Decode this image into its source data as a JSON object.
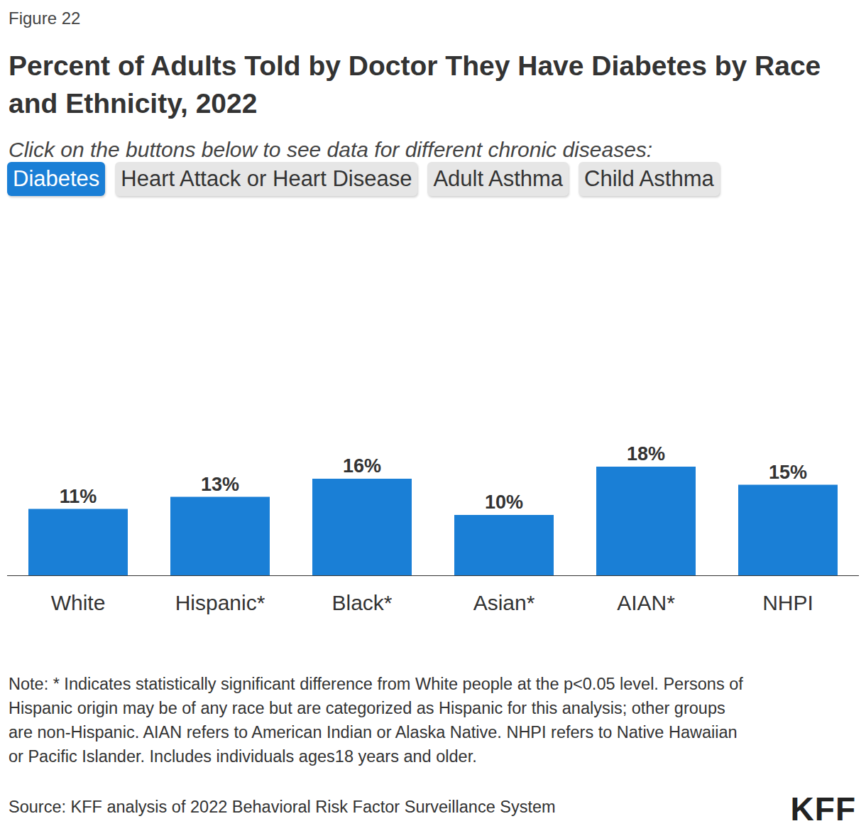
{
  "header": {
    "figure_label": "Figure 22",
    "subtitle": "Click on the buttons below to see data for different chronic diseases:",
    "buttons": [
      "Diabetes",
      "Heart Attack or Heart Disease",
      "Adult Asthma",
      "Child Asthma"
    ],
    "active_button": "Diabetes"
  },
  "chart_data": {
    "type": "bar",
    "title": "Percent of Adults Told by Doctor They Have Diabetes by Race and Ethnicity, 2022",
    "categories": [
      "White",
      "Hispanic*",
      "Black*",
      "Asian*",
      "AIAN*",
      "NHPI"
    ],
    "values": [
      11,
      13,
      16,
      10,
      18,
      15
    ],
    "value_labels": [
      "11%",
      "13%",
      "16%",
      "10%",
      "18%",
      "15%"
    ],
    "color": "#1a7fd6",
    "ylim": [
      0,
      18
    ],
    "yticks": [
      0,
      18
    ],
    "grid": false,
    "data_labels": true,
    "tick_labels": "x"
  },
  "footer": {
    "note": "Note: * Indicates statistically significant difference from White people at the p<0.05 level. Persons of Hispanic origin may be of any race but are categorized as Hispanic for this analysis; other groups are non-Hispanic. AIAN refers to American Indian or Alaska Native. NHPI refers to Native Hawaiian or Pacific Islander. Includes individuals ages18 years and older.",
    "source": "Source: KFF analysis of 2022 Behavioral Risk Factor Surveillance System",
    "logo": "KFF"
  }
}
